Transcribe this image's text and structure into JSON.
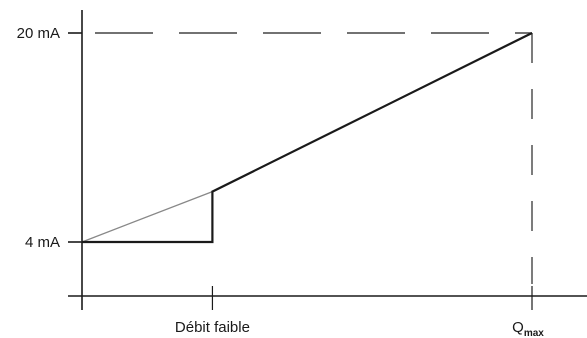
{
  "chart_data": {
    "type": "line",
    "title": "",
    "xlabel": "",
    "ylabel": "",
    "y_ticks": [
      {
        "value": 4,
        "label": "4 mA"
      },
      {
        "value": 20,
        "label": "20 mA"
      }
    ],
    "x_ticks": [
      {
        "value": 1,
        "label": "Débit faible"
      },
      {
        "value": 3.45,
        "label": "Q",
        "subscript": "max"
      }
    ],
    "xlim": [
      0,
      3.45
    ],
    "ylim": [
      0,
      20
    ],
    "grid": false,
    "series": [
      {
        "style": "thin-gray",
        "x": [
          0,
          1
        ],
        "y": [
          4,
          7.86
        ]
      },
      {
        "style": "thick-black",
        "x": [
          0,
          1,
          1,
          3.45
        ],
        "y": [
          4,
          4,
          7.86,
          20
        ]
      }
    ],
    "reference_lines": [
      {
        "orientation": "horizontal",
        "value": 20,
        "style": "dashed"
      },
      {
        "orientation": "vertical",
        "value": 3.45,
        "style": "dashed"
      }
    ],
    "colors": {
      "axis": "#1a1a1a",
      "main_line": "#1a1a1a",
      "reference_line": "#888888",
      "dash": "#444444"
    }
  }
}
